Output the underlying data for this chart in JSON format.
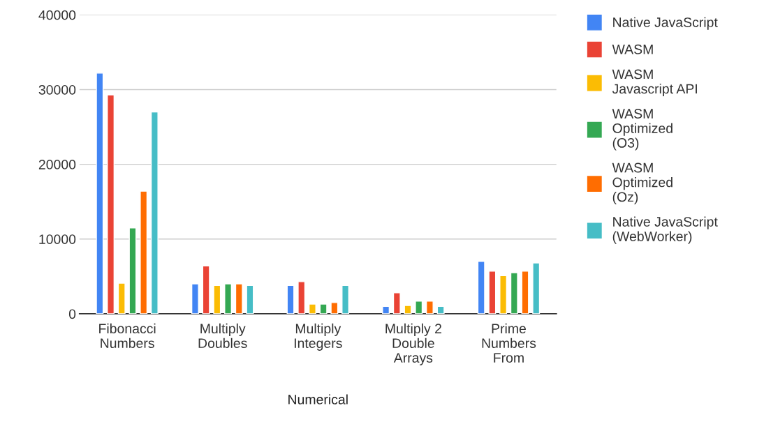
{
  "chart_data": {
    "type": "bar",
    "xlabel": "Numerical",
    "categories": [
      "Fibonacci\nNumbers",
      "Multiply\nDoubles",
      "Multiply\nIntegers",
      "Multiply 2\nDouble\nArrays",
      "Prime\nNumbers\nFrom"
    ],
    "series": [
      {
        "name": "Native JavaScript",
        "color": "#4285f4",
        "values": [
          32200,
          4000,
          3800,
          1000,
          7000
        ]
      },
      {
        "name": "WASM",
        "color": "#ea4335",
        "values": [
          29300,
          6400,
          4300,
          2800,
          5700
        ]
      },
      {
        "name": "WASM\nJavascript API",
        "color": "#fbbc04",
        "values": [
          4100,
          3800,
          1300,
          1100,
          5100
        ]
      },
      {
        "name": "WASM\nOptimized\n(O3)",
        "color": "#34a853",
        "values": [
          11500,
          4000,
          1300,
          1700,
          5500
        ]
      },
      {
        "name": "WASM\nOptimized\n(Oz)",
        "color": "#ff6d01",
        "values": [
          16400,
          4000,
          1500,
          1700,
          5700
        ]
      },
      {
        "name": "Native JavaScript\n(WebWorker)",
        "color": "#46bdc6",
        "values": [
          27000,
          3800,
          3800,
          1000,
          6800
        ]
      }
    ],
    "ylim": [
      0,
      40000
    ],
    "yticks": [
      0,
      10000,
      20000,
      30000,
      40000
    ],
    "grid": "y",
    "legend": "right"
  }
}
